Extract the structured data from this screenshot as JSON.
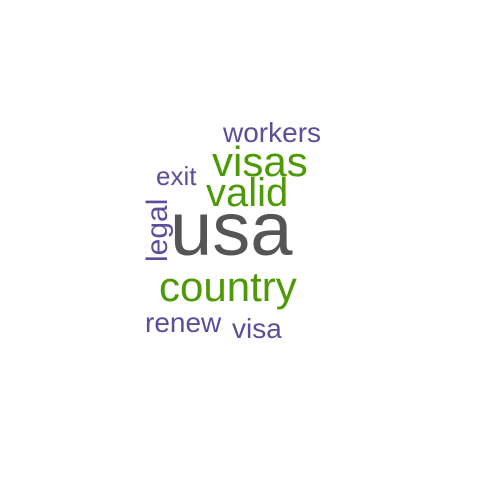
{
  "word_cloud": {
    "words": [
      {
        "text": "usa",
        "color": "#555555"
      },
      {
        "text": "visas",
        "color": "#4e9a06"
      },
      {
        "text": "valid",
        "color": "#4e9a06"
      },
      {
        "text": "country",
        "color": "#4e9a06"
      },
      {
        "text": "workers",
        "color": "#5c4e9a"
      },
      {
        "text": "exit",
        "color": "#5c4e9a"
      },
      {
        "text": "legal",
        "color": "#5c4e9a"
      },
      {
        "text": "renew",
        "color": "#5c4e9a"
      },
      {
        "text": "visa",
        "color": "#5c4e9a"
      }
    ]
  }
}
